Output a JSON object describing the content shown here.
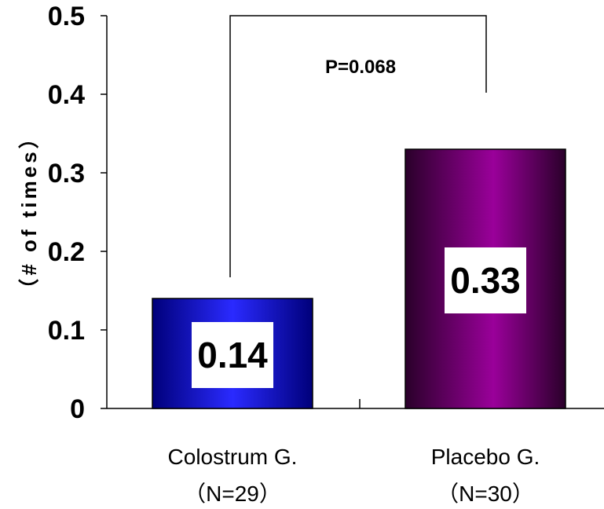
{
  "chart_data": {
    "type": "bar",
    "categories": [
      "Colostrum G.",
      "Placebo G."
    ],
    "category_sublabels": [
      "（N=29）",
      "（N=30）"
    ],
    "values": [
      0.14,
      0.33
    ],
    "data_labels": [
      "0.14",
      "0.33"
    ],
    "ylabel": "（# of times）",
    "ylim": [
      0,
      0.5
    ],
    "yticks": [
      "0",
      "0.1",
      "0.2",
      "0.3",
      "0.4",
      "0.5"
    ],
    "annotation": "P=0.068",
    "grid": false,
    "colors": {
      "colostrum_dark": "#00007a",
      "colostrum_light": "#2a2aff",
      "placebo_dark": "#2a002a",
      "placebo_light": "#9a009a"
    }
  }
}
